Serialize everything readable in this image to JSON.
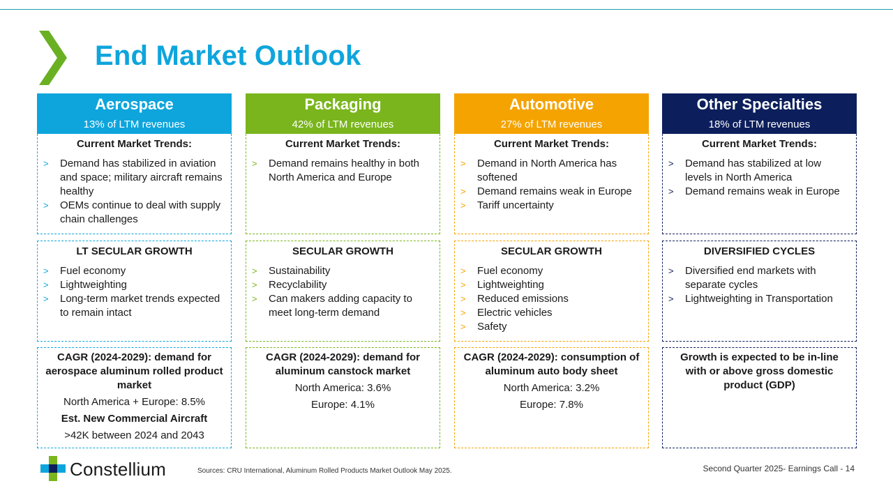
{
  "title": "End Market Outlook",
  "colors": {
    "accent": "#0ea5dc",
    "chevron": "#6ab023",
    "aerospace": "#0ea5dc",
    "packaging": "#7ab51d",
    "automotive": "#f5a300",
    "specialties": "#0c1f5c"
  },
  "columns": [
    {
      "title": "Aerospace",
      "subtitle": "13% of LTM revenues",
      "trends_title": "Current Market Trends:",
      "trends": [
        "Demand has stabilized in aviation and space; military aircraft remains healthy",
        "OEMs continue to deal with supply chain challenges"
      ],
      "growth_title": "LT SECULAR GROWTH",
      "growth": [
        "Fuel economy",
        "Lightweighting",
        "Long-term market trends expected to remain intact"
      ],
      "cagr_title": "CAGR (2024-2029): demand for aerospace aluminum rolled product market",
      "cagr_lines": [
        "North America + Europe: 8.5%"
      ],
      "cagr_sub": "Est. New Commercial Aircraft",
      "cagr_sub_line": ">42K between 2024 and 2043"
    },
    {
      "title": "Packaging",
      "subtitle": "42% of LTM revenues",
      "trends_title": "Current Market Trends:",
      "trends": [
        "Demand remains healthy in both North America and Europe"
      ],
      "growth_title": "SECULAR GROWTH",
      "growth": [
        "Sustainability",
        "Recyclability",
        "Can makers adding capacity to meet long-term demand"
      ],
      "cagr_title": "CAGR (2024-2029): demand for aluminum canstock market",
      "cagr_lines": [
        "North America: 3.6%",
        "Europe: 4.1%"
      ]
    },
    {
      "title": "Automotive",
      "subtitle": "27% of LTM revenues",
      "trends_title": "Current Market Trends:",
      "trends": [
        "Demand in North America has softened",
        "Demand remains weak in Europe",
        "Tariff uncertainty"
      ],
      "growth_title": "SECULAR GROWTH",
      "growth": [
        "Fuel economy",
        "Lightweighting",
        "Reduced emissions",
        "Electric vehicles",
        "Safety"
      ],
      "cagr_title": "CAGR (2024-2029): consumption of aluminum auto body sheet",
      "cagr_lines": [
        "North America: 3.2%",
        "Europe: 7.8%"
      ]
    },
    {
      "title": "Other Specialties",
      "subtitle": "18% of LTM revenues",
      "trends_title": "Current Market Trends:",
      "trends": [
        "Demand has stabilized at low levels in North America",
        "Demand remains weak in Europe"
      ],
      "growth_title": "DIVERSIFIED CYCLES",
      "growth": [
        "Diversified end markets with separate cycles",
        "Lightweighting in Transportation"
      ],
      "cagr_title": "Growth is expected to be in-line with or above gross domestic product (GDP)",
      "cagr_lines": []
    }
  ],
  "bullet_glyph": ">",
  "logo_text": "Constellium",
  "sources": "Sources: CRU International, Aluminum Rolled Products Market Outlook May 2025.",
  "footer": "Second Quarter 2025- Earnings Call - 14"
}
